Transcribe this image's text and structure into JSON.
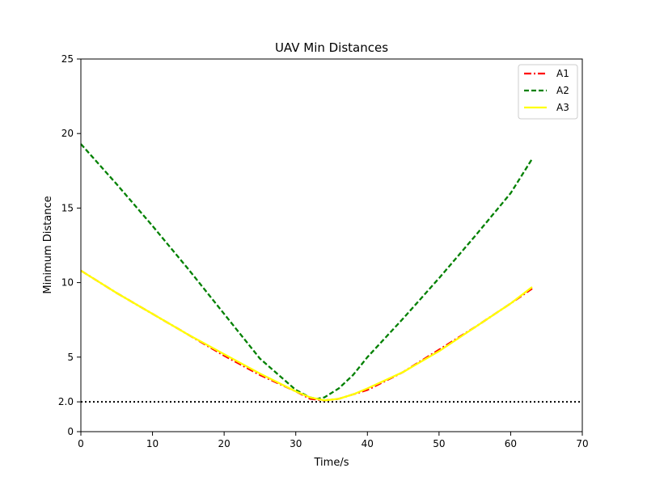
{
  "chart_data": {
    "type": "line",
    "title": "UAV Min Distances",
    "xlabel": "Time/s",
    "ylabel": "Minimum Distance",
    "xlim": [
      0,
      70
    ],
    "ylim": [
      0,
      25
    ],
    "xticks": [
      {
        "value": 0,
        "label": "0"
      },
      {
        "value": 10,
        "label": "10"
      },
      {
        "value": 20,
        "label": "20"
      },
      {
        "value": 30,
        "label": "30"
      },
      {
        "value": 40,
        "label": "40"
      },
      {
        "value": 50,
        "label": "50"
      },
      {
        "value": 60,
        "label": "60"
      },
      {
        "value": 70,
        "label": "70"
      }
    ],
    "yticks": [
      {
        "value": 0,
        "label": "0"
      },
      {
        "value": 2,
        "label": "2.0"
      },
      {
        "value": 5,
        "label": "5"
      },
      {
        "value": 10,
        "label": "10"
      },
      {
        "value": 15,
        "label": "15"
      },
      {
        "value": 20,
        "label": "20"
      },
      {
        "value": 25,
        "label": "25"
      }
    ],
    "grid": false,
    "legend_position": "top-right",
    "threshold": {
      "y": 2.0,
      "style": "dotted",
      "color": "#000000"
    },
    "series": [
      {
        "name": "A1",
        "color": "#ff0000",
        "style": "dashdot",
        "x": [
          0,
          5,
          10,
          15,
          20,
          25,
          30,
          32,
          34,
          36,
          38,
          40,
          45,
          50,
          55,
          60,
          63
        ],
        "y": [
          10.8,
          9.3,
          7.9,
          6.5,
          5.1,
          3.8,
          2.7,
          2.2,
          2.1,
          2.2,
          2.5,
          2.8,
          4.0,
          5.5,
          7.0,
          8.6,
          9.6
        ]
      },
      {
        "name": "A2",
        "color": "#008000",
        "style": "dashed",
        "x": [
          0,
          5,
          10,
          15,
          20,
          25,
          30,
          32,
          33,
          34,
          36,
          38,
          40,
          45,
          50,
          55,
          60,
          63
        ],
        "y": [
          19.3,
          16.6,
          13.8,
          10.9,
          7.9,
          4.9,
          2.8,
          2.3,
          2.2,
          2.3,
          2.9,
          3.8,
          5.0,
          7.6,
          10.3,
          13.1,
          16.0,
          18.3
        ]
      },
      {
        "name": "A3",
        "color": "#ffff00",
        "style": "solid",
        "x": [
          0,
          5,
          10,
          15,
          20,
          25,
          30,
          32,
          34,
          36,
          38,
          40,
          45,
          50,
          55,
          60,
          63
        ],
        "y": [
          10.8,
          9.3,
          7.9,
          6.5,
          5.2,
          3.9,
          2.7,
          2.3,
          2.1,
          2.2,
          2.5,
          2.9,
          4.0,
          5.4,
          7.0,
          8.6,
          9.7
        ]
      }
    ]
  }
}
